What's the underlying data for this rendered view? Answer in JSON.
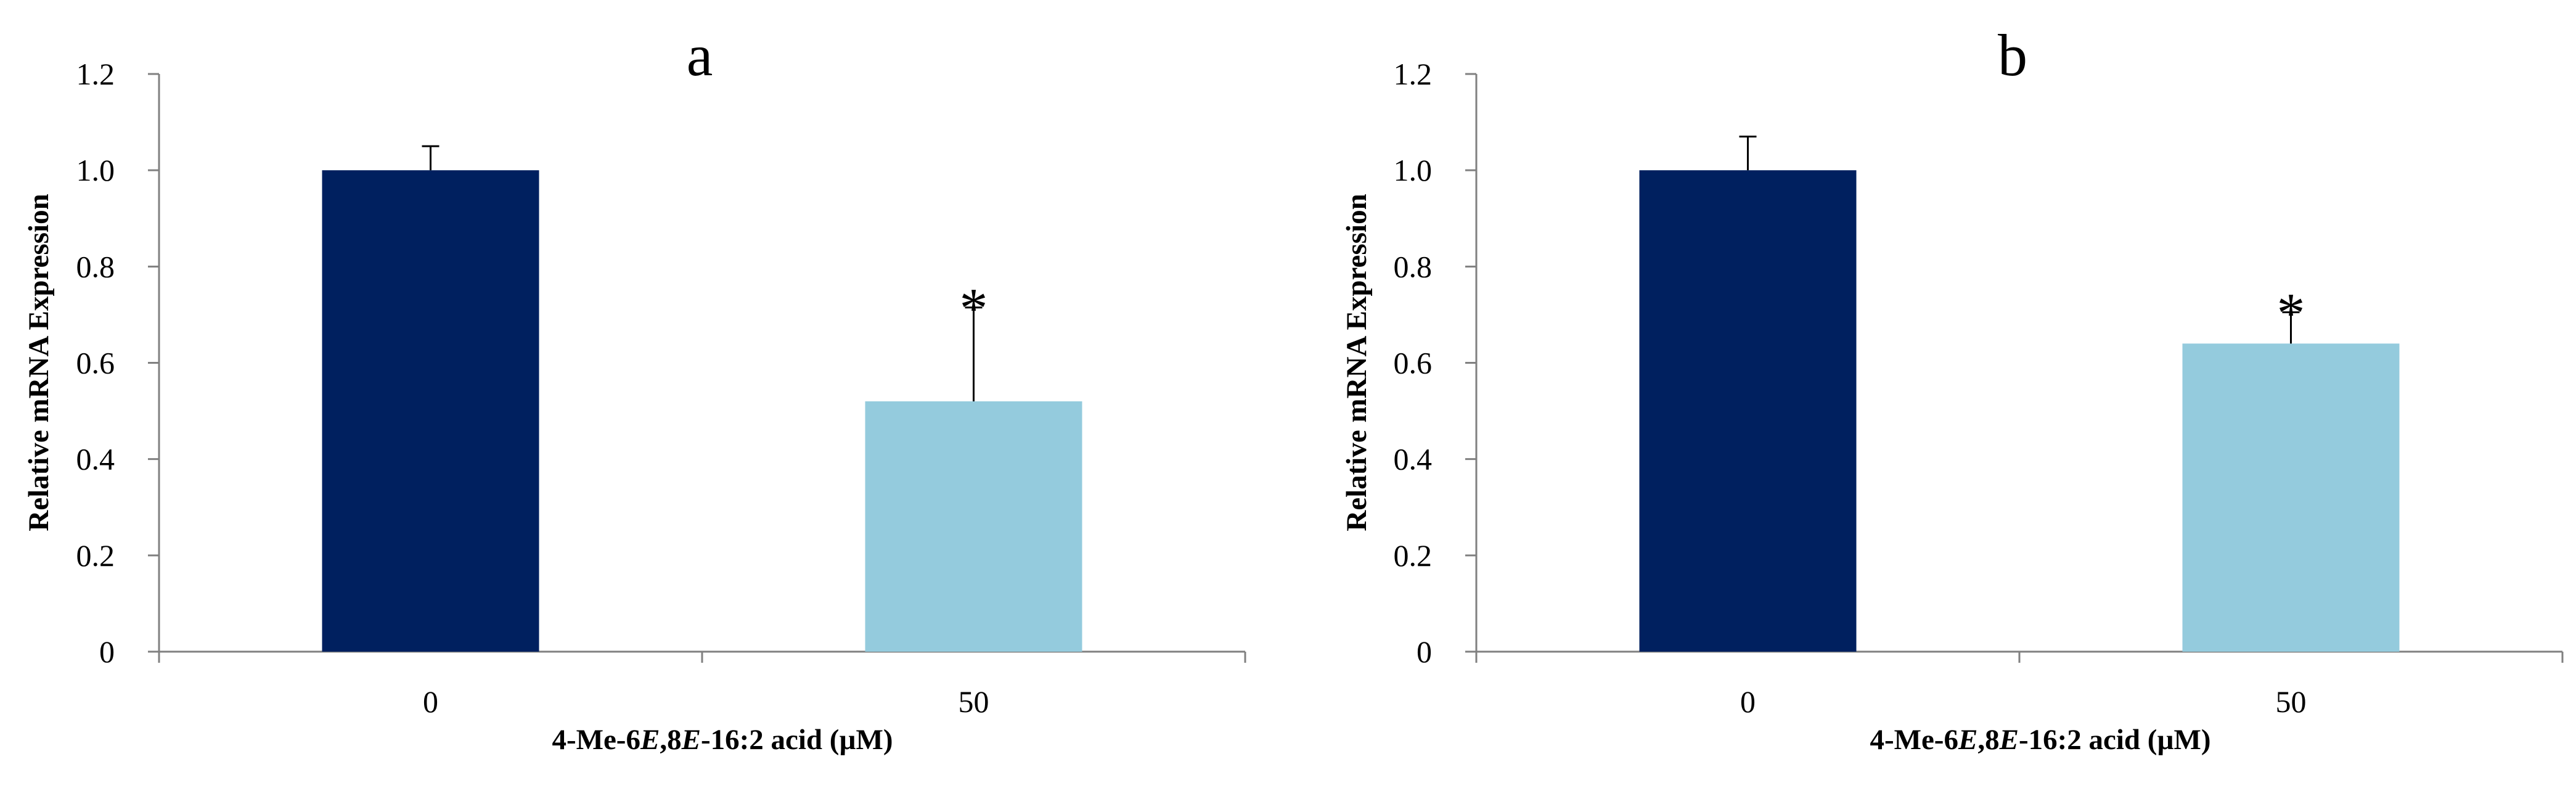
{
  "chart_data": [
    {
      "type": "bar",
      "title": "a",
      "xlabel": "4-Me-6E,8E-16:2 acid (µM)",
      "xlabel_parts": [
        "4-Me-6",
        "E",
        ",8",
        "E",
        "-16:2 acid (µM)"
      ],
      "ylabel": "Relative mRNA  Expression",
      "categories": [
        "0",
        "50"
      ],
      "values": [
        1.0,
        0.52
      ],
      "error": [
        0.05,
        0.195
      ],
      "significance": [
        "",
        "*"
      ],
      "colors": [
        "#00205f",
        "#94cbdd"
      ],
      "ylim": [
        0,
        1.2
      ],
      "yticks": [
        "0",
        "0.2",
        "0.4",
        "0.6",
        "0.8",
        "1.0",
        "1.2"
      ],
      "grid": false,
      "legend": "none"
    },
    {
      "type": "bar",
      "title": "b",
      "xlabel": "4-Me-6E,8E-16:2 acid (µM)",
      "xlabel_parts": [
        "4-Me-6",
        "E",
        ",8",
        "E",
        "-16:2 acid (µM)"
      ],
      "ylabel": "Relative mRNA  Expression",
      "categories": [
        "0",
        "50"
      ],
      "values": [
        1.0,
        0.64
      ],
      "error": [
        0.07,
        0.065
      ],
      "significance": [
        "",
        "*"
      ],
      "colors": [
        "#00205f",
        "#94cbdd"
      ],
      "ylim": [
        0,
        1.2
      ],
      "yticks": [
        "0",
        "0.2",
        "0.4",
        "0.6",
        "0.8",
        "1.0",
        "1.2"
      ],
      "grid": false,
      "legend": "none"
    }
  ]
}
